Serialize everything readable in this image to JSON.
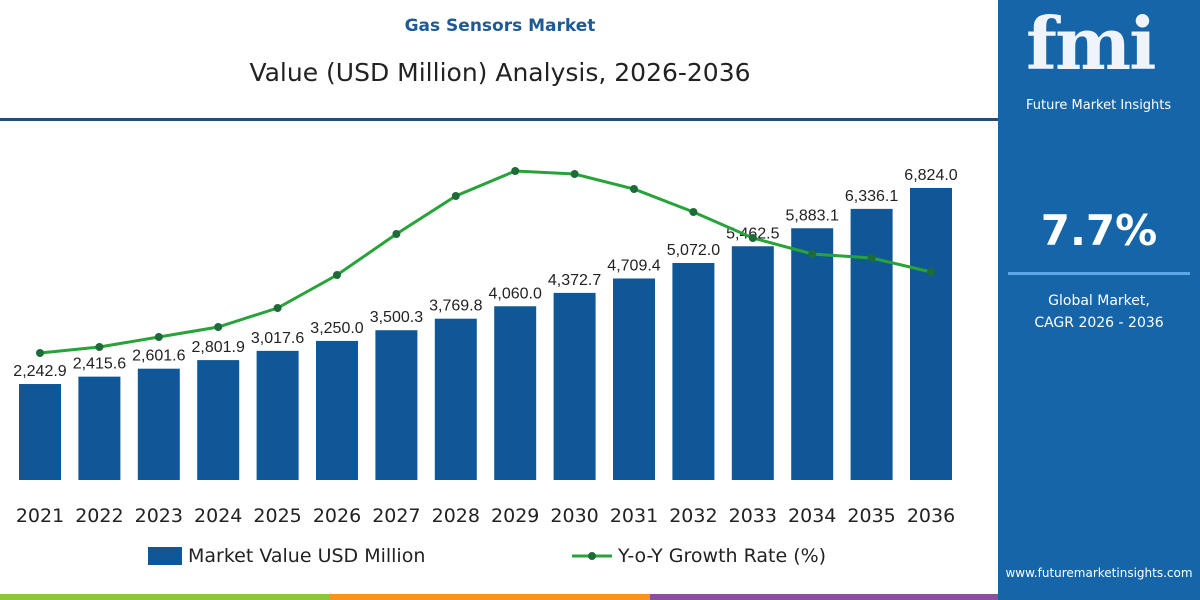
{
  "header": {
    "kicker": "Gas Sensors Market",
    "title": "Value (USD Million) Analysis, 2026-2036"
  },
  "sidebar": {
    "logo": "fmi",
    "logo_sub": "Future Market Insights",
    "cagr": "7.7%",
    "cagr_label_1": "Global Market,",
    "cagr_label_2": "CAGR 2026 - 2036",
    "url": "www.futuremarketinsights.com",
    "color": "#1565a8"
  },
  "chart_data": {
    "type": "bar+line",
    "title": "Value (USD Million) Analysis, 2026-2036",
    "categories": [
      "2021",
      "2022",
      "2023",
      "2024",
      "2025",
      "2026",
      "2027",
      "2028",
      "2029",
      "2030",
      "2031",
      "2032",
      "2033",
      "2034",
      "2035",
      "2036"
    ],
    "series": [
      {
        "name": "Market Value USD Million",
        "type": "bar",
        "color": "#0f5797",
        "values": [
          2242.9,
          2415.6,
          2601.6,
          2801.9,
          3017.6,
          3250.0,
          3500.3,
          3769.8,
          4060.0,
          4372.7,
          4709.4,
          5072.0,
          5462.5,
          5883.1,
          6336.1,
          6824.0
        ],
        "labels": [
          "2,242.9",
          "2,415.6",
          "2,601.6",
          "2,801.9",
          "3,017.6",
          "3,250.0",
          "3,500.3",
          "3,769.8",
          "4,060.0",
          "4,372.7",
          "4,709.4",
          "5,072.0",
          "5,462.5",
          "5,883.1",
          "6,336.1",
          "6,824.0"
        ]
      },
      {
        "name": "Y-o-Y Growth Rate (%)",
        "type": "line",
        "color": "#27a33a",
        "values": [
          2.35,
          2.65,
          3.15,
          3.65,
          4.6,
          6.25,
          8.3,
          10.2,
          11.45,
          11.3,
          10.55,
          9.4,
          8.1,
          7.3,
          7.1,
          6.4
        ]
      }
    ],
    "ylim": [
      0,
      7000
    ],
    "grid": false,
    "legend": "bottom"
  },
  "stripes": [
    "#8cc63f",
    "#f7941d",
    "#8e4ea0"
  ]
}
